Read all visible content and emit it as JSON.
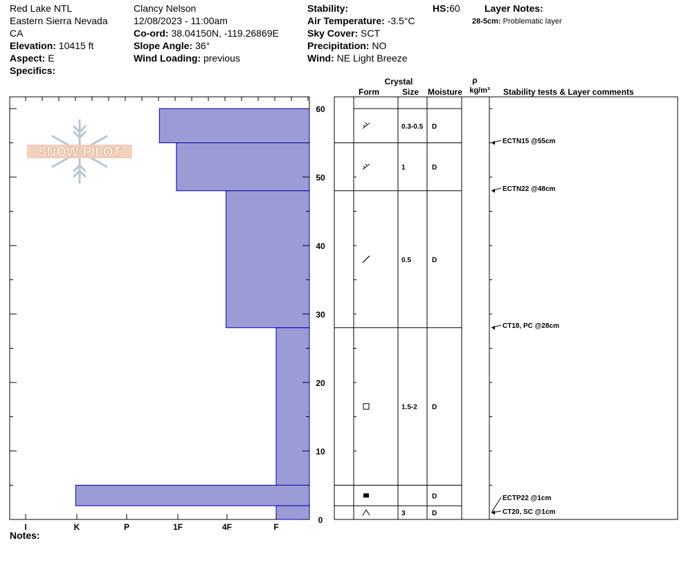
{
  "header": {
    "location": "Red Lake NTL",
    "region": "Eastern Sierra Nevada",
    "state": "CA",
    "elevation_label": "Elevation:",
    "elevation": "10415 ft",
    "aspect_label": "Aspect:",
    "aspect": "E",
    "specifics_label": "Specifics:",
    "observer": "Clancy Nelson",
    "datetime": "12/08/2023 - 11:00am",
    "coord_label": "Co-ord:",
    "coord": "38.04150N, -119.26869E",
    "slope_label": "Slope Angle:",
    "slope": "36°",
    "wind_loading_label": "Wind Loading:",
    "wind_loading": "previous",
    "stability_label": "Stability:",
    "stability": "",
    "air_temp_label": "Air Temperature:",
    "air_temp": "-3.5°C",
    "sky_label": "Sky Cover:",
    "sky": "SCT",
    "precip_label": "Precipitation:",
    "precip": "NO",
    "wind_label": "Wind:",
    "wind": "NE Light Breeze",
    "hs_label": "HS:",
    "hs": "60",
    "layer_notes_label": "Layer Notes:",
    "layer_note_range": "28-5cm:",
    "layer_note_text": "Problematic layer"
  },
  "logo_text": "SNOW PILOT",
  "notes_label": "Notes:",
  "columns": {
    "crystal": "Crystal",
    "form": "Form",
    "size": "Size",
    "moisture": "Moisture",
    "rho": "ρ",
    "density_unit": "kg/m³",
    "stability_comments": "Stability tests & Layer comments"
  },
  "colors": {
    "hardness_fill": "#9b9bd6",
    "hardness_stroke": "#0000aa"
  },
  "chart_data": {
    "type": "bar",
    "title": "",
    "xlabel": "",
    "ylabel": "",
    "hardness_scale": [
      "I",
      "K",
      "P",
      "1F",
      "4F",
      "F"
    ],
    "ylim": [
      0,
      60
    ],
    "yticks": [
      0,
      10,
      20,
      30,
      40,
      50,
      60
    ],
    "layers": [
      {
        "top": 60,
        "bottom": 55,
        "hardness": "1F-",
        "hardness_value": 3.0
      },
      {
        "top": 55,
        "bottom": 48,
        "hardness": "1F+",
        "hardness_value": 2.66
      },
      {
        "top": 48,
        "bottom": 28,
        "hardness": "4F",
        "hardness_value": 1.67
      },
      {
        "top": 28,
        "bottom": 5,
        "hardness": "F",
        "hardness_value": 0.67
      },
      {
        "top": 5,
        "bottom": 2,
        "hardness": "K",
        "hardness_value": 4.67
      },
      {
        "top": 2,
        "bottom": 0,
        "hardness": "F",
        "hardness_value": 0.67
      }
    ],
    "grain_layers": [
      {
        "top": 60,
        "bottom": 55,
        "form": "precipitation-particles",
        "size": "0.3-0.5",
        "moisture": "D"
      },
      {
        "top": 55,
        "bottom": 48,
        "form": "precipitation-particles",
        "size": "1",
        "moisture": "D"
      },
      {
        "top": 48,
        "bottom": 28,
        "form": "decomposing-fragments",
        "size": "0.5",
        "moisture": "D"
      },
      {
        "top": 28,
        "bottom": 5,
        "form": "faceted-crystals",
        "size": "1.5-2",
        "moisture": "D"
      },
      {
        "top": 5,
        "bottom": 2,
        "form": "melt-freeze-crust",
        "size": "",
        "moisture": "D"
      },
      {
        "top": 2,
        "bottom": 0,
        "form": "depth-hoar",
        "size": "3",
        "moisture": "D"
      }
    ],
    "tests": [
      {
        "depth": 55,
        "label": "ECTN15 @55cm"
      },
      {
        "depth": 48,
        "label": "ECTN22 @48cm"
      },
      {
        "depth": 28,
        "label": "CT18, PC @28cm"
      },
      {
        "depth": 1,
        "label": "ECTP22 @1cm"
      },
      {
        "depth": 1,
        "label": "CT20, SC @1cm"
      }
    ]
  }
}
